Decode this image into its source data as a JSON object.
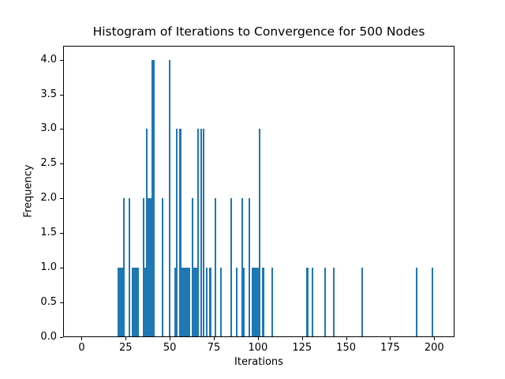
{
  "chart_data": {
    "type": "bar",
    "title": "Histogram of Iterations to Convergence for 500 Nodes",
    "xlabel": "Iterations",
    "ylabel": "Frequency",
    "xlim": [
      -10.5,
      211.5
    ],
    "ylim": [
      0,
      4.2
    ],
    "grid": false,
    "legend": "none",
    "bar_color": "#1f77b4",
    "bar_width": 1,
    "xticks": [
      0,
      25,
      50,
      75,
      100,
      125,
      150,
      175,
      200
    ],
    "xtick_labels": [
      "0",
      "25",
      "50",
      "75",
      "100",
      "125",
      "150",
      "175",
      "200"
    ],
    "yticks": [
      0,
      0.5,
      1,
      1.5,
      2,
      2.5,
      3,
      3.5,
      4
    ],
    "ytick_labels": [
      "0.0",
      "0.5",
      "1.0",
      "1.5",
      "2.0",
      "2.5",
      "3.0",
      "3.5",
      "4.0"
    ],
    "bars_note": "pairs of [iterations_bin_center, frequency]",
    "bars": [
      [
        21,
        1
      ],
      [
        22,
        1
      ],
      [
        23,
        1
      ],
      [
        24,
        2
      ],
      [
        27,
        2
      ],
      [
        29,
        1
      ],
      [
        30,
        1
      ],
      [
        31,
        1
      ],
      [
        32,
        1
      ],
      [
        35,
        2
      ],
      [
        36,
        1
      ],
      [
        37,
        3
      ],
      [
        38,
        2
      ],
      [
        39,
        2
      ],
      [
        40,
        4
      ],
      [
        41,
        4
      ],
      [
        46,
        2
      ],
      [
        50,
        4
      ],
      [
        53,
        1
      ],
      [
        54,
        3
      ],
      [
        56,
        3
      ],
      [
        57,
        1
      ],
      [
        58,
        1
      ],
      [
        59,
        1
      ],
      [
        60,
        1
      ],
      [
        61,
        1
      ],
      [
        63,
        2
      ],
      [
        64,
        1
      ],
      [
        65,
        1
      ],
      [
        66,
        3
      ],
      [
        68,
        3
      ],
      [
        69,
        3
      ],
      [
        71,
        1
      ],
      [
        73,
        1
      ],
      [
        76,
        2
      ],
      [
        79,
        1
      ],
      [
        85,
        2
      ],
      [
        88,
        1
      ],
      [
        91,
        2
      ],
      [
        92,
        1
      ],
      [
        95,
        2
      ],
      [
        97,
        1
      ],
      [
        98,
        1
      ],
      [
        99,
        1
      ],
      [
        100,
        1
      ],
      [
        101,
        3
      ],
      [
        103,
        1
      ],
      [
        108,
        1
      ],
      [
        128,
        1
      ],
      [
        131,
        1
      ],
      [
        138,
        1
      ],
      [
        143,
        1
      ],
      [
        159,
        1
      ],
      [
        190,
        1
      ],
      [
        199,
        1
      ]
    ]
  }
}
